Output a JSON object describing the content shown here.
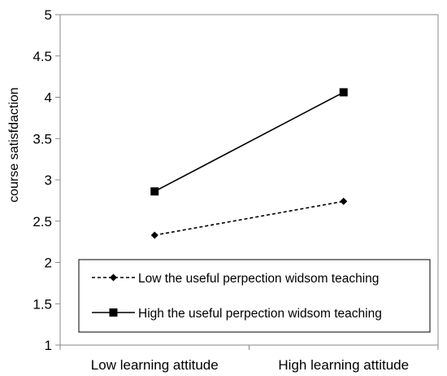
{
  "chart_data": {
    "type": "line",
    "title": "",
    "xlabel": "",
    "ylabel": "course satisfdaction",
    "categories": [
      "Low learning attitude",
      "High learning attitude"
    ],
    "ylim": [
      1,
      5
    ],
    "yticks": [
      "1",
      "1.5",
      "2",
      "2.5",
      "3",
      "3.5",
      "4",
      "4.5",
      "5"
    ],
    "grid": false,
    "legend_position": "bottom-right",
    "series": [
      {
        "name": "Low the useful perpection widsom teaching",
        "values": [
          2.33,
          2.74
        ],
        "marker": "diamond",
        "line_style": "dashed",
        "color": "#000000"
      },
      {
        "name": "High the useful perpection widsom teaching",
        "values": [
          2.86,
          4.06
        ],
        "marker": "square",
        "line_style": "solid",
        "color": "#000000"
      }
    ]
  }
}
